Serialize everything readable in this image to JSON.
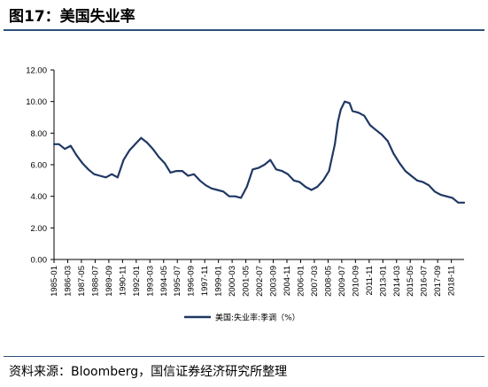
{
  "figure_title": "图17：美国失业率",
  "source_text": "资料来源：Bloomberg，国信证券经济研究所整理",
  "colors": {
    "series": "#1f3864",
    "rule": "#2e4f7a",
    "axis": "#000000"
  },
  "chart_data": {
    "type": "line",
    "title": "",
    "xlabel": "",
    "ylabel": "",
    "ylim": [
      0,
      12
    ],
    "y_ticks": [
      "0.00",
      "2.00",
      "4.00",
      "6.00",
      "8.00",
      "10.00",
      "12.00"
    ],
    "x_tick_labels": [
      "1985-01",
      "1986-03",
      "1987-05",
      "1988-07",
      "1989-09",
      "1990-11",
      "1992-01",
      "1993-03",
      "1994-05",
      "1995-07",
      "1996-09",
      "1997-11",
      "1999-01",
      "2000-03",
      "2001-05",
      "2002-07",
      "2003-09",
      "2004-11",
      "2006-01",
      "2007-03",
      "2008-05",
      "2009-07",
      "2010-09",
      "2011-11",
      "2013-01",
      "2014-03",
      "2015-05",
      "2016-07",
      "2017-09",
      "2018-11"
    ],
    "x_range": [
      "1985-01",
      "2019-12"
    ],
    "grid": false,
    "legend": "bottom-center",
    "series": [
      {
        "name": "美国:失业率:季调（%）",
        "x": [
          "1985-01",
          "1985-06",
          "1985-12",
          "1986-06",
          "1986-12",
          "1987-06",
          "1987-12",
          "1988-06",
          "1988-12",
          "1989-06",
          "1989-12",
          "1990-06",
          "1990-12",
          "1991-06",
          "1991-12",
          "1992-06",
          "1992-12",
          "1993-06",
          "1993-12",
          "1994-06",
          "1994-12",
          "1995-06",
          "1995-12",
          "1996-06",
          "1996-12",
          "1997-06",
          "1997-12",
          "1998-06",
          "1998-12",
          "1999-06",
          "1999-12",
          "2000-06",
          "2000-12",
          "2001-06",
          "2001-12",
          "2002-06",
          "2002-12",
          "2003-06",
          "2003-12",
          "2004-06",
          "2004-12",
          "2005-06",
          "2005-12",
          "2006-06",
          "2006-12",
          "2007-06",
          "2007-12",
          "2008-06",
          "2008-12",
          "2009-03",
          "2009-06",
          "2009-10",
          "2010-03",
          "2010-06",
          "2010-12",
          "2011-06",
          "2011-12",
          "2012-06",
          "2012-12",
          "2013-06",
          "2013-12",
          "2014-06",
          "2014-12",
          "2015-06",
          "2015-12",
          "2016-06",
          "2016-12",
          "2017-06",
          "2017-12",
          "2018-06",
          "2018-12",
          "2019-06",
          "2019-12"
        ],
        "y": [
          7.3,
          7.3,
          7.0,
          7.2,
          6.6,
          6.1,
          5.7,
          5.4,
          5.3,
          5.2,
          5.4,
          5.2,
          6.3,
          6.9,
          7.3,
          7.7,
          7.4,
          7.0,
          6.5,
          6.1,
          5.5,
          5.6,
          5.6,
          5.3,
          5.4,
          5.0,
          4.7,
          4.5,
          4.4,
          4.3,
          4.0,
          4.0,
          3.9,
          4.6,
          5.7,
          5.8,
          6.0,
          6.3,
          5.7,
          5.6,
          5.4,
          5.0,
          4.9,
          4.6,
          4.4,
          4.6,
          5.0,
          5.6,
          7.3,
          8.7,
          9.5,
          10.0,
          9.9,
          9.4,
          9.3,
          9.1,
          8.5,
          8.2,
          7.9,
          7.5,
          6.7,
          6.1,
          5.6,
          5.3,
          5.0,
          4.9,
          4.7,
          4.3,
          4.1,
          4.0,
          3.9,
          3.6,
          3.6
        ]
      }
    ]
  }
}
